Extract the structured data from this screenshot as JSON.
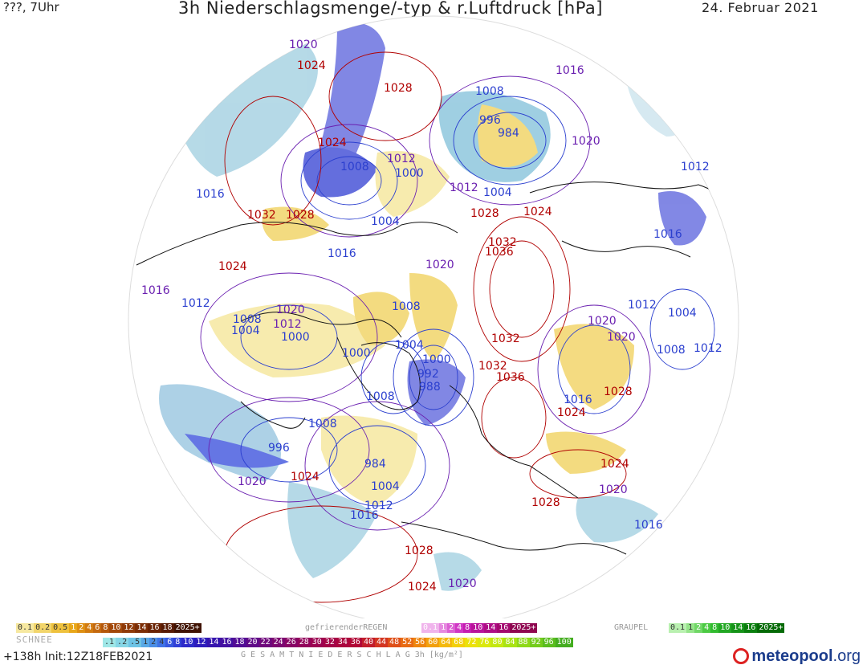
{
  "header": {
    "left": "???, 7Uhr",
    "title": "3h Niederschlagsmenge/-typ & r.Luftdruck [hPa]",
    "date": "24. Februar 2021"
  },
  "isobar_labels": [
    {
      "text": "1020",
      "c": "purple"
    },
    {
      "text": "1024",
      "c": "red"
    },
    {
      "text": "1028",
      "c": "red"
    },
    {
      "text": "1008",
      "c": "blue"
    },
    {
      "text": "996",
      "c": "blue"
    },
    {
      "text": "984",
      "c": "blue"
    },
    {
      "text": "1016",
      "c": "purple"
    },
    {
      "text": "1024",
      "c": "red"
    },
    {
      "text": "1008",
      "c": "blue"
    },
    {
      "text": "1012",
      "c": "purple"
    },
    {
      "text": "1000",
      "c": "blue"
    },
    {
      "text": "1012",
      "c": "purple"
    },
    {
      "text": "1004",
      "c": "blue"
    },
    {
      "text": "1020",
      "c": "purple"
    },
    {
      "text": "1012",
      "c": "blue"
    },
    {
      "text": "1016",
      "c": "blue"
    },
    {
      "text": "1032",
      "c": "red"
    },
    {
      "text": "1028",
      "c": "red"
    },
    {
      "text": "1004",
      "c": "blue"
    },
    {
      "text": "1028",
      "c": "red"
    },
    {
      "text": "1024",
      "c": "red"
    },
    {
      "text": "1016",
      "c": "blue"
    },
    {
      "text": "1024",
      "c": "red"
    },
    {
      "text": "1016",
      "c": "blue"
    },
    {
      "text": "1020",
      "c": "purple"
    },
    {
      "text": "1032",
      "c": "red"
    },
    {
      "text": "1036",
      "c": "red"
    },
    {
      "text": "1016",
      "c": "purple"
    },
    {
      "text": "1012",
      "c": "blue"
    },
    {
      "text": "1020",
      "c": "purple"
    },
    {
      "text": "1008",
      "c": "blue"
    },
    {
      "text": "1008",
      "c": "blue"
    },
    {
      "text": "1012",
      "c": "purple"
    },
    {
      "text": "1004",
      "c": "blue"
    },
    {
      "text": "1000",
      "c": "blue"
    },
    {
      "text": "1000",
      "c": "blue"
    },
    {
      "text": "1004",
      "c": "blue"
    },
    {
      "text": "1012",
      "c": "blue"
    },
    {
      "text": "1004",
      "c": "blue"
    },
    {
      "text": "1020",
      "c": "purple"
    },
    {
      "text": "1020",
      "c": "purple"
    },
    {
      "text": "1008",
      "c": "blue"
    },
    {
      "text": "1012",
      "c": "blue"
    },
    {
      "text": "1032",
      "c": "red"
    },
    {
      "text": "1000",
      "c": "blue"
    },
    {
      "text": "992",
      "c": "blue"
    },
    {
      "text": "988",
      "c": "blue"
    },
    {
      "text": "1032",
      "c": "red"
    },
    {
      "text": "1036",
      "c": "red"
    },
    {
      "text": "1016",
      "c": "blue"
    },
    {
      "text": "1028",
      "c": "red"
    },
    {
      "text": "1024",
      "c": "red"
    },
    {
      "text": "1008",
      "c": "blue"
    },
    {
      "text": "1008",
      "c": "blue"
    },
    {
      "text": "996",
      "c": "blue"
    },
    {
      "text": "1020",
      "c": "purple"
    },
    {
      "text": "1024",
      "c": "red"
    },
    {
      "text": "984",
      "c": "blue"
    },
    {
      "text": "1004",
      "c": "blue"
    },
    {
      "text": "1012",
      "c": "blue"
    },
    {
      "text": "1016",
      "c": "blue"
    },
    {
      "text": "1024",
      "c": "red"
    },
    {
      "text": "1020",
      "c": "purple"
    },
    {
      "text": "1028",
      "c": "red"
    },
    {
      "text": "1016",
      "c": "blue"
    },
    {
      "text": "1028",
      "c": "red"
    },
    {
      "text": "1024",
      "c": "red"
    },
    {
      "text": "1020",
      "c": "purple"
    }
  ],
  "legend": {
    "snow_label": "SCHNEE",
    "snow_scale": [
      "0.1",
      "0.2",
      "0.5",
      "1",
      "2",
      "4",
      "6",
      "8",
      "10",
      "12",
      "14",
      "16",
      "18",
      "2025+"
    ],
    "freezing_rain_label": "gefrierenderREGEN",
    "freezing_rain_scale": [
      "0.1",
      "1",
      "2",
      "4",
      "8",
      "10",
      "14",
      "16",
      "2025+"
    ],
    "graupel_label": "GRAUPEL",
    "graupel_scale": [
      "0.1",
      "1",
      "2",
      "4",
      "8",
      "10",
      "14",
      "16",
      "2025+"
    ],
    "total_label": "G E S A M T N I E D E R S C H L A G   3h   [kg/m²]",
    "total_scale": [
      ".1",
      ".2",
      ".5",
      "1",
      "2",
      "4",
      "6",
      "8",
      "10",
      "12",
      "14",
      "16",
      "18",
      "20",
      "22",
      "24",
      "26",
      "28",
      "30",
      "32",
      "34",
      "36",
      "40",
      "44",
      "48",
      "52",
      "56",
      "60",
      "64",
      "68",
      "72",
      "76",
      "80",
      "84",
      "88",
      "92",
      "96",
      "100"
    ],
    "run_info": "+138h  Init:12Z18FEB2021",
    "brand": "meteopool",
    "brand_tld": ".org"
  },
  "colors": {
    "snow": [
      "#f6e8a0",
      "#f2d56b",
      "#eec13d",
      "#e8a719",
      "#de8f12",
      "#d27b10",
      "#c4690f",
      "#b4580c",
      "#a2480a",
      "#8f3a08",
      "#7c2e06",
      "#6a2304",
      "#571a03",
      "#3f1202"
    ],
    "freezing_rain": [
      "#f0b4ec",
      "#e68ae0",
      "#db5fd3",
      "#d036c4",
      "#c51cb1",
      "#b9129b",
      "#ae0c85",
      "#a3086f",
      "#8f0650"
    ],
    "graupel": [
      "#b9f0b0",
      "#95e48a",
      "#70d766",
      "#4cca43",
      "#31bb2f",
      "#22a723",
      "#159318",
      "#0a7f0e",
      "#046a06"
    ],
    "total": [
      "#9fe7e7",
      "#86d6e6",
      "#6ec4e6",
      "#5aa9e6",
      "#4b8ee6",
      "#3f72e6",
      "#3657e0",
      "#3040d6",
      "#2c2ac9",
      "#2d1cbc",
      "#3514ae",
      "#4310a2",
      "#520d95",
      "#600a88",
      "#6f087c",
      "#7c0670",
      "#880465",
      "#93035b",
      "#9c0351",
      "#a40447",
      "#ab053e",
      "#b10735",
      "#c21d2b",
      "#d33521",
      "#df5019",
      "#e86b13",
      "#ee860f",
      "#f2a00c",
      "#f4b90a",
      "#f3d009",
      "#ebe10a",
      "#dbe80c",
      "#c4e80f",
      "#a9e313",
      "#8ed917",
      "#73cc1b",
      "#5abd1e",
      "#44ad20"
    ]
  }
}
